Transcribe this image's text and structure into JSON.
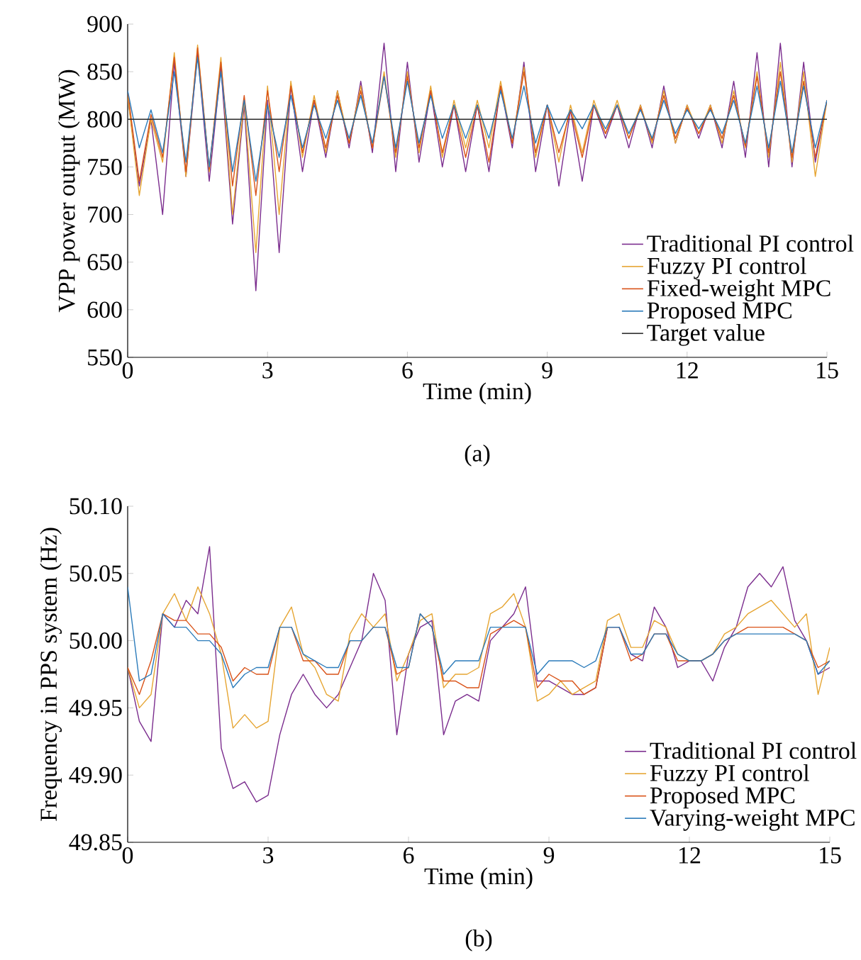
{
  "chart_data": [
    {
      "type": "line",
      "xlabel": "Time (min)",
      "ylabel": "VPP power output (MW)",
      "annotations": [
        "(a)"
      ],
      "x": [
        0,
        0.25,
        0.5,
        0.75,
        1,
        1.25,
        1.5,
        1.75,
        2,
        2.25,
        2.5,
        2.75,
        3,
        3.25,
        3.5,
        3.75,
        4,
        4.25,
        4.5,
        4.75,
        5,
        5.25,
        5.5,
        5.75,
        6,
        6.25,
        6.5,
        6.75,
        7,
        7.25,
        7.5,
        7.75,
        8,
        8.25,
        8.5,
        8.75,
        9,
        9.25,
        9.5,
        9.75,
        10,
        10.25,
        10.5,
        10.75,
        11,
        11.25,
        11.5,
        11.75,
        12,
        12.25,
        12.5,
        12.75,
        13,
        13.25,
        13.5,
        13.75,
        14,
        14.25,
        14.5,
        14.75,
        15
      ],
      "xlim": [
        0,
        15
      ],
      "xticks": [
        0,
        3,
        6,
        9,
        12,
        15
      ],
      "ylim": [
        550,
        900
      ],
      "yticks": [
        550,
        600,
        650,
        700,
        750,
        800,
        850,
        900
      ],
      "legend": "bottom right",
      "marker": "none",
      "series": [
        {
          "name": "Traditional PI control",
          "color": "#7b2d8e",
          "values": [
            825,
            730,
            800,
            700,
            860,
            740,
            870,
            735,
            855,
            690,
            815,
            620,
            820,
            660,
            835,
            745,
            820,
            760,
            830,
            770,
            840,
            765,
            880,
            745,
            860,
            755,
            830,
            750,
            815,
            745,
            815,
            745,
            835,
            770,
            860,
            745,
            815,
            730,
            810,
            735,
            815,
            780,
            815,
            770,
            815,
            770,
            835,
            775,
            815,
            780,
            815,
            770,
            840,
            760,
            870,
            750,
            880,
            750,
            860,
            755,
            820
          ]
        },
        {
          "name": "Fuzzy PI control",
          "color": "#e6a532",
          "values": [
            825,
            720,
            800,
            755,
            870,
            740,
            878,
            745,
            865,
            700,
            820,
            660,
            835,
            700,
            840,
            760,
            825,
            765,
            830,
            775,
            835,
            770,
            850,
            760,
            850,
            765,
            835,
            760,
            820,
            770,
            820,
            770,
            840,
            775,
            855,
            760,
            815,
            755,
            815,
            765,
            820,
            785,
            820,
            780,
            815,
            775,
            830,
            775,
            815,
            785,
            815,
            775,
            830,
            770,
            850,
            760,
            860,
            755,
            850,
            740,
            820
          ]
        },
        {
          "name": "Fixed-weight MPC",
          "color": "#d95319",
          "values": [
            830,
            735,
            805,
            760,
            865,
            745,
            875,
            748,
            860,
            730,
            825,
            720,
            830,
            745,
            835,
            765,
            820,
            770,
            825,
            775,
            830,
            770,
            845,
            765,
            845,
            770,
            830,
            765,
            815,
            760,
            815,
            755,
            835,
            775,
            850,
            765,
            815,
            765,
            810,
            760,
            815,
            785,
            815,
            780,
            812,
            778,
            825,
            780,
            812,
            785,
            812,
            780,
            825,
            772,
            845,
            765,
            850,
            760,
            840,
            760,
            820
          ]
        },
        {
          "name": "Proposed MPC",
          "color": "#2b7bba",
          "values": [
            830,
            770,
            810,
            765,
            850,
            755,
            865,
            750,
            850,
            745,
            820,
            735,
            815,
            760,
            825,
            770,
            815,
            780,
            820,
            780,
            825,
            775,
            845,
            770,
            840,
            775,
            825,
            780,
            815,
            780,
            815,
            780,
            830,
            780,
            835,
            775,
            815,
            785,
            810,
            790,
            815,
            790,
            815,
            785,
            810,
            780,
            820,
            785,
            810,
            790,
            810,
            785,
            820,
            775,
            835,
            770,
            840,
            765,
            835,
            770,
            820
          ]
        },
        {
          "name": "Target value",
          "color": "#2a2a2a",
          "x": [
            0,
            15
          ],
          "values": [
            800,
            800
          ]
        }
      ]
    },
    {
      "type": "line",
      "xlabel": "Time (min)",
      "ylabel": "Frequency in PPS system (Hz)",
      "annotations": [
        "(b)"
      ],
      "x": [
        0,
        0.25,
        0.5,
        0.75,
        1,
        1.25,
        1.5,
        1.75,
        2,
        2.25,
        2.5,
        2.75,
        3,
        3.25,
        3.5,
        3.75,
        4,
        4.25,
        4.5,
        4.75,
        5,
        5.25,
        5.5,
        5.75,
        6,
        6.25,
        6.5,
        6.75,
        7,
        7.25,
        7.5,
        7.75,
        8,
        8.25,
        8.5,
        8.75,
        9,
        9.25,
        9.5,
        9.75,
        10,
        10.25,
        10.5,
        10.75,
        11,
        11.25,
        11.5,
        11.75,
        12,
        12.25,
        12.5,
        12.75,
        13,
        13.25,
        13.5,
        13.75,
        14,
        14.25,
        14.5,
        14.75,
        15
      ],
      "xlim": [
        0,
        15
      ],
      "xticks": [
        0,
        3,
        6,
        9,
        12,
        15
      ],
      "ylim": [
        49.85,
        50.1
      ],
      "yticks": [
        {
          "value": 49.85,
          "label": "49.85"
        },
        {
          "value": 49.9,
          "label": "49.90"
        },
        {
          "value": 49.95,
          "label": "49.95"
        },
        {
          "value": 50.0,
          "label": "50.00"
        },
        {
          "value": 50.05,
          "label": "50.05"
        },
        {
          "value": 50.1,
          "label": "50.10"
        }
      ],
      "legend": "bottom right",
      "marker": "none",
      "series": [
        {
          "name": "Traditional PI control",
          "color": "#7b2d8e",
          "values": [
            49.98,
            49.94,
            49.925,
            50.02,
            50.01,
            50.03,
            50.02,
            50.07,
            49.92,
            49.89,
            49.895,
            49.88,
            49.885,
            49.93,
            49.96,
            49.975,
            49.96,
            49.95,
            49.96,
            49.98,
            50.0,
            50.05,
            50.03,
            49.93,
            49.99,
            50.01,
            50.015,
            49.93,
            49.955,
            49.96,
            49.955,
            50.0,
            50.01,
            50.02,
            50.04,
            49.97,
            49.97,
            49.965,
            49.96,
            49.96,
            49.965,
            50.01,
            50.01,
            49.99,
            49.985,
            50.025,
            50.01,
            49.98,
            49.985,
            49.985,
            49.97,
            49.995,
            50.01,
            50.04,
            50.05,
            50.04,
            50.055,
            50.015,
            50.0,
            49.975,
            49.98
          ]
        },
        {
          "name": "Fuzzy PI control",
          "color": "#e6a532",
          "values": [
            49.98,
            49.95,
            49.96,
            50.02,
            50.035,
            50.015,
            50.04,
            50.02,
            49.99,
            49.935,
            49.945,
            49.935,
            49.94,
            50.01,
            50.025,
            49.99,
            49.98,
            49.96,
            49.955,
            50.005,
            50.02,
            50.01,
            50.02,
            49.97,
            49.99,
            50.015,
            50.02,
            49.965,
            49.975,
            49.975,
            49.98,
            50.02,
            50.025,
            50.035,
            50.01,
            49.955,
            49.96,
            49.97,
            49.96,
            49.965,
            49.97,
            50.015,
            50.02,
            49.995,
            49.995,
            50.015,
            50.01,
            49.99,
            49.985,
            49.985,
            49.99,
            50.005,
            50.01,
            50.02,
            50.025,
            50.03,
            50.02,
            50.01,
            50.02,
            49.96,
            49.995
          ]
        },
        {
          "name": "Proposed MPC",
          "color": "#d95319",
          "values": [
            49.98,
            49.96,
            49.985,
            50.02,
            50.015,
            50.015,
            50.005,
            50.005,
            49.995,
            49.97,
            49.98,
            49.975,
            49.975,
            50.01,
            50.01,
            49.985,
            49.985,
            49.975,
            49.975,
            50.0,
            50.0,
            50.01,
            50.01,
            49.975,
            49.98,
            50.02,
            50.01,
            49.97,
            49.97,
            49.965,
            49.965,
            50.005,
            50.01,
            50.015,
            50.01,
            49.965,
            49.975,
            49.97,
            49.97,
            49.96,
            49.965,
            50.01,
            50.01,
            49.985,
            49.99,
            50.005,
            50.005,
            49.985,
            49.985,
            49.985,
            49.99,
            50.0,
            50.005,
            50.01,
            50.01,
            50.01,
            50.01,
            50.005,
            50.0,
            49.98,
            49.985
          ]
        },
        {
          "name": "Varying-weight MPC",
          "color": "#2b7bba",
          "values": [
            50.04,
            49.97,
            49.975,
            50.02,
            50.01,
            50.01,
            50.0,
            50.0,
            49.99,
            49.965,
            49.975,
            49.98,
            49.98,
            50.01,
            50.01,
            49.99,
            49.985,
            49.98,
            49.98,
            50.0,
            50.0,
            50.01,
            50.01,
            49.98,
            49.98,
            50.02,
            50.01,
            49.975,
            49.985,
            49.985,
            49.985,
            50.01,
            50.01,
            50.01,
            50.01,
            49.975,
            49.985,
            49.985,
            49.985,
            49.98,
            49.985,
            50.01,
            50.01,
            49.99,
            49.99,
            50.005,
            50.005,
            49.99,
            49.985,
            49.985,
            49.99,
            50.0,
            50.005,
            50.005,
            50.005,
            50.005,
            50.005,
            50.005,
            50.0,
            49.975,
            49.985
          ]
        }
      ]
    }
  ]
}
